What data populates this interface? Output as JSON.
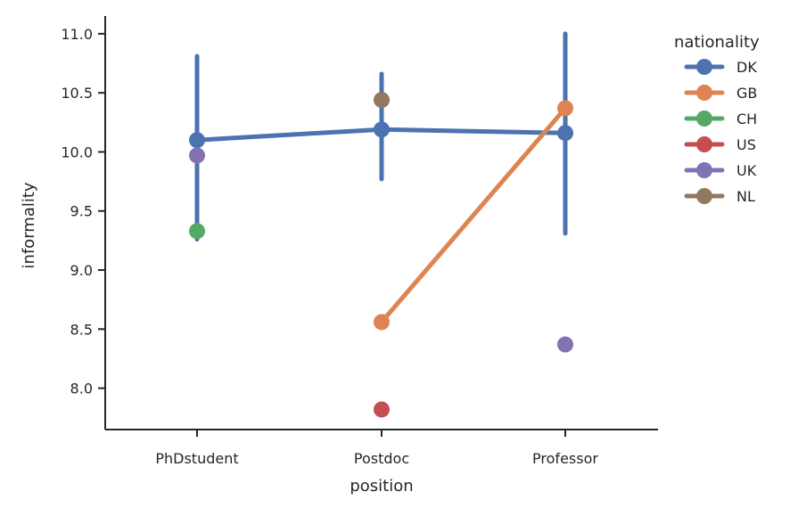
{
  "chart_data": {
    "type": "line",
    "xlabel": "position",
    "ylabel": "informality",
    "categories": [
      "PhDstudent",
      "Postdoc",
      "Professor"
    ],
    "ylim": [
      7.65,
      11.15
    ],
    "yticks": [
      8.0,
      8.5,
      9.0,
      9.5,
      10.0,
      10.5,
      11.0
    ],
    "ytick_labels": [
      "8.0",
      "8.5",
      "9.0",
      "9.5",
      "10.0",
      "10.5",
      "11.0"
    ],
    "grid": false,
    "legend": {
      "title": "nationality",
      "placement": "outside-top-right"
    },
    "series": [
      {
        "name": "DK",
        "color": "#4c72b0",
        "values": [
          10.1,
          10.19,
          10.16
        ],
        "ci": [
          [
            9.26,
            10.81
          ],
          [
            9.77,
            10.66
          ],
          [
            9.31,
            11.0
          ]
        ]
      },
      {
        "name": "GB",
        "color": "#dd8452",
        "values": [
          null,
          8.56,
          10.37
        ],
        "ci": [
          null,
          null,
          null
        ]
      },
      {
        "name": "CH",
        "color": "#55a868",
        "values": [
          9.33,
          null,
          null
        ],
        "ci": [
          null,
          null,
          null
        ]
      },
      {
        "name": "US",
        "color": "#c44e52",
        "values": [
          null,
          7.82,
          null
        ],
        "ci": [
          null,
          null,
          null
        ]
      },
      {
        "name": "UK",
        "color": "#8172b3",
        "values": [
          9.97,
          null,
          8.37
        ],
        "ci": [
          null,
          null,
          null
        ]
      },
      {
        "name": "NL",
        "color": "#937860",
        "values": [
          null,
          10.44,
          null
        ],
        "ci": [
          null,
          null,
          null
        ]
      }
    ]
  }
}
